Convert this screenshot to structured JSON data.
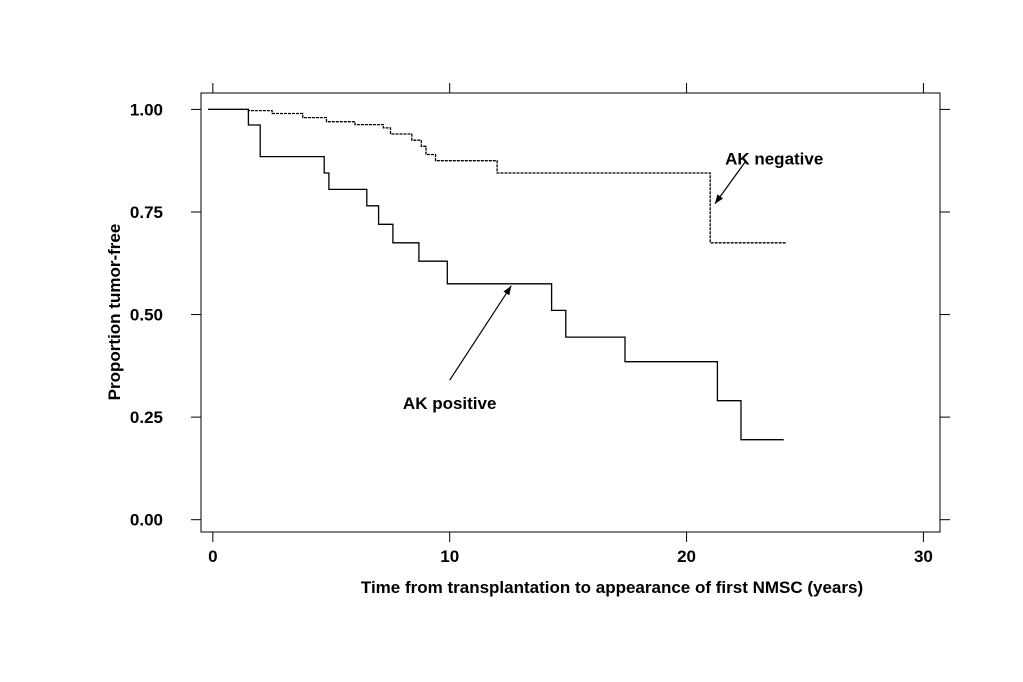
{
  "chart_data": {
    "type": "line",
    "title": "",
    "xlabel": "Time from transplantation to appearance of first NMSC (years)",
    "ylabel": "Proportion tumor-free",
    "xlim": [
      -0.5,
      30.7
    ],
    "ylim": [
      -0.03,
      1.04
    ],
    "x_ticks": [
      0,
      10,
      20,
      30
    ],
    "x_tick_labels": [
      "0",
      "10",
      "20",
      "30"
    ],
    "y_ticks": [
      0.0,
      0.25,
      0.5,
      0.75,
      1.0
    ],
    "y_tick_labels": [
      "0.00",
      "0.25",
      "0.50",
      "0.75",
      "1.00"
    ],
    "grid": false,
    "step": true,
    "series": [
      {
        "label": "AK negative",
        "line_style": "dotted",
        "points": [
          [
            -0.2,
            1.0
          ],
          [
            1.5,
            1.0
          ],
          [
            1.5,
            0.997
          ],
          [
            2.5,
            0.997
          ],
          [
            2.5,
            0.99
          ],
          [
            3.8,
            0.99
          ],
          [
            3.8,
            0.98
          ],
          [
            4.8,
            0.98
          ],
          [
            4.8,
            0.97
          ],
          [
            6.0,
            0.97
          ],
          [
            6.0,
            0.963
          ],
          [
            7.2,
            0.963
          ],
          [
            7.2,
            0.955
          ],
          [
            7.5,
            0.955
          ],
          [
            7.5,
            0.94
          ],
          [
            8.4,
            0.94
          ],
          [
            8.4,
            0.925
          ],
          [
            8.8,
            0.925
          ],
          [
            8.8,
            0.91
          ],
          [
            9.0,
            0.91
          ],
          [
            9.0,
            0.89
          ],
          [
            9.4,
            0.89
          ],
          [
            9.4,
            0.875
          ],
          [
            12.0,
            0.875
          ],
          [
            12.0,
            0.845
          ],
          [
            21.0,
            0.845
          ],
          [
            21.0,
            0.675
          ],
          [
            24.2,
            0.675
          ]
        ]
      },
      {
        "label": "AK positive",
        "line_style": "solid",
        "points": [
          [
            -0.2,
            1.0
          ],
          [
            1.5,
            1.0
          ],
          [
            1.5,
            0.962
          ],
          [
            2.0,
            0.962
          ],
          [
            2.0,
            0.885
          ],
          [
            4.7,
            0.885
          ],
          [
            4.7,
            0.845
          ],
          [
            4.9,
            0.845
          ],
          [
            4.9,
            0.805
          ],
          [
            6.5,
            0.805
          ],
          [
            6.5,
            0.765
          ],
          [
            7.0,
            0.765
          ],
          [
            7.0,
            0.72
          ],
          [
            7.6,
            0.72
          ],
          [
            7.6,
            0.675
          ],
          [
            8.7,
            0.675
          ],
          [
            8.7,
            0.63
          ],
          [
            9.9,
            0.63
          ],
          [
            9.9,
            0.575
          ],
          [
            14.3,
            0.575
          ],
          [
            14.3,
            0.51
          ],
          [
            14.9,
            0.51
          ],
          [
            14.9,
            0.445
          ],
          [
            17.4,
            0.445
          ],
          [
            17.4,
            0.385
          ],
          [
            21.3,
            0.385
          ],
          [
            21.3,
            0.29
          ],
          [
            22.3,
            0.29
          ],
          [
            22.3,
            0.195
          ],
          [
            24.1,
            0.195
          ]
        ]
      }
    ],
    "annotations": [
      {
        "text": "AK negative",
        "text_at": [
          23.7,
          0.88
        ],
        "arrow_from": [
          22.5,
          0.874
        ],
        "arrow_to": [
          21.2,
          0.77
        ]
      },
      {
        "text": "AK positive",
        "text_at": [
          10.0,
          0.285
        ],
        "arrow_from": [
          10.0,
          0.34
        ],
        "arrow_to": [
          12.6,
          0.57
        ]
      }
    ]
  }
}
